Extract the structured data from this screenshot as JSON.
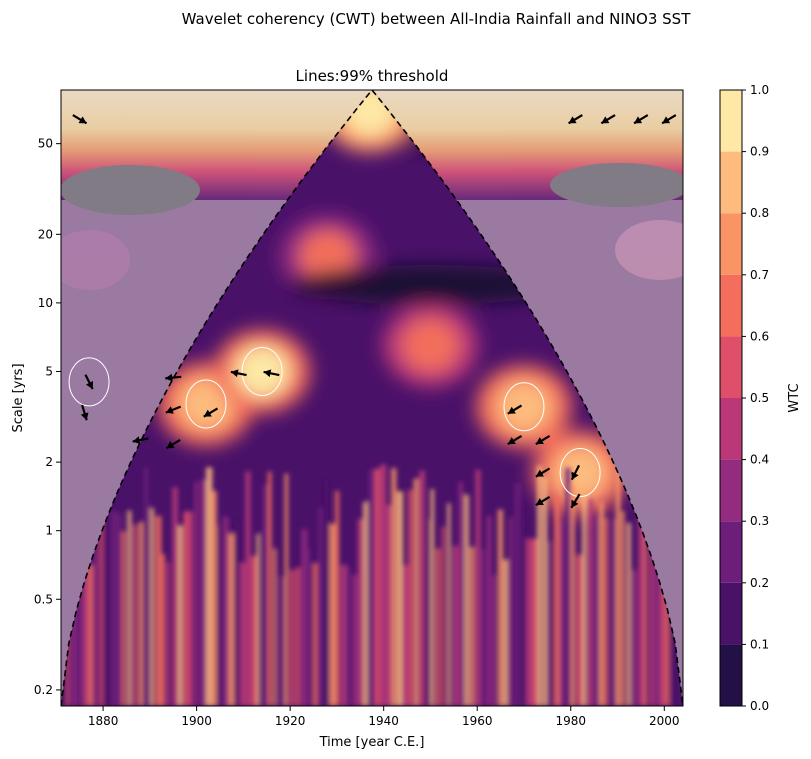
{
  "chart_data": {
    "type": "heatmap",
    "title": "Wavelet coherency (CWT) between All-India Rainfall and NINO3 SST",
    "subtitle": "Lines:99% threshold",
    "xlabel": "Time [year C.E.]",
    "ylabel": "Scale [yrs]",
    "colorbar_label": "WTC",
    "xlim": [
      1871,
      2004
    ],
    "ylim": [
      0.17,
      86
    ],
    "y_scale": "log",
    "x_ticks": [
      1880,
      1900,
      1920,
      1940,
      1960,
      1980,
      2000
    ],
    "y_ticks": [
      0.2,
      0.5,
      1,
      2,
      5,
      10,
      20,
      50
    ],
    "y_tick_labels": [
      "0.2",
      "0.5",
      "1",
      "2",
      "5",
      "10",
      "20",
      "50"
    ],
    "colorbar_levels": [
      0.0,
      0.1,
      0.2,
      0.3,
      0.4,
      0.5,
      0.6,
      0.7,
      0.8,
      0.9,
      1.0
    ],
    "colorbar_tick_labels": [
      "0.0",
      "0.1",
      "0.2",
      "0.3",
      "0.4",
      "0.5",
      "0.6",
      "0.7",
      "0.8",
      "0.9",
      "1.0"
    ],
    "colormap": [
      "#0b0924",
      "#231046",
      "#4a1169",
      "#6d1d7a",
      "#932b7f",
      "#ba3878",
      "#e04f6a",
      "#f36e5c",
      "#fa9464",
      "#fdbb7e",
      "#fde8a6"
    ],
    "cone_of_influence_peak": {
      "year": 1937.5,
      "scale": 86
    },
    "high_coherence_regions": [
      {
        "year": 1877,
        "scale": 4.5,
        "wtc": 0.9
      },
      {
        "year": 1902,
        "scale": 3.6,
        "wtc": 0.9
      },
      {
        "year": 1914,
        "scale": 5.0,
        "wtc": 0.95
      },
      {
        "year": 1970,
        "scale": 3.5,
        "wtc": 0.9
      },
      {
        "year": 1982,
        "scale": 1.8,
        "wtc": 0.9
      },
      {
        "year": 1928,
        "scale": 16,
        "wtc": 0.65
      },
      {
        "year": 1950,
        "scale": 6.5,
        "wtc": 0.7
      },
      {
        "year": 1937,
        "scale": 70,
        "wtc": 1.0
      }
    ],
    "phase_arrows": [
      {
        "year": 1875,
        "scale": 64,
        "dx": 1,
        "dy": 0.6
      },
      {
        "year": 1877,
        "scale": 4.5,
        "dx": 0.5,
        "dy": 1
      },
      {
        "year": 1876,
        "scale": 3.3,
        "dx": 0.3,
        "dy": 1
      },
      {
        "year": 1895,
        "scale": 4.7,
        "dx": -1,
        "dy": 0.1
      },
      {
        "year": 1895,
        "scale": 3.4,
        "dx": -1,
        "dy": 0.4
      },
      {
        "year": 1903,
        "scale": 3.3,
        "dx": -1,
        "dy": 0.6
      },
      {
        "year": 1888,
        "scale": 2.5,
        "dx": -1,
        "dy": 0.2
      },
      {
        "year": 1895,
        "scale": 2.4,
        "dx": -1,
        "dy": 0.6
      },
      {
        "year": 1909,
        "scale": 4.9,
        "dx": -1,
        "dy": -0.2
      },
      {
        "year": 1916,
        "scale": 4.9,
        "dx": -1,
        "dy": -0.2
      },
      {
        "year": 1968,
        "scale": 3.4,
        "dx": -1,
        "dy": 0.6
      },
      {
        "year": 1968,
        "scale": 2.5,
        "dx": -1,
        "dy": 0.6
      },
      {
        "year": 1974,
        "scale": 2.5,
        "dx": -1,
        "dy": 0.6
      },
      {
        "year": 1974,
        "scale": 1.8,
        "dx": -1,
        "dy": 0.6
      },
      {
        "year": 1974,
        "scale": 1.35,
        "dx": -1,
        "dy": 0.6
      },
      {
        "year": 1981,
        "scale": 1.8,
        "dx": -0.5,
        "dy": 1
      },
      {
        "year": 1981,
        "scale": 1.35,
        "dx": -0.6,
        "dy": 1
      },
      {
        "year": 1981,
        "scale": 64,
        "dx": -1,
        "dy": 0.6
      },
      {
        "year": 1988,
        "scale": 64,
        "dx": -1,
        "dy": 0.6
      },
      {
        "year": 1995,
        "scale": 64,
        "dx": -1,
        "dy": 0.6
      },
      {
        "year": 2001,
        "scale": 64,
        "dx": -1,
        "dy": 0.6
      }
    ]
  }
}
